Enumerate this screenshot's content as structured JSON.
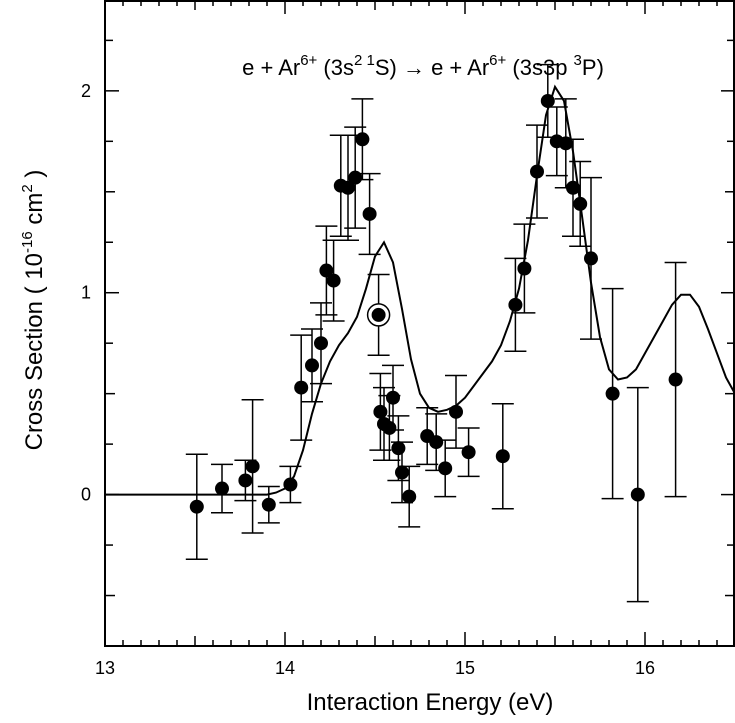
{
  "chart_data": {
    "type": "scatter",
    "title": "e + Ar6+ (3s2 1S) → e + Ar6+ (3s3p 3P)",
    "title_parts": {
      "pre": "e + Ar",
      "sup1": "6+",
      "mid1": " (3s",
      "sup2": "2 1",
      "mid2": "S) → e + Ar",
      "sup3": "6+",
      "mid3": " (3s3p ",
      "sup4": "3",
      "post": "P)"
    },
    "xlabel": "Interaction Energy (eV)",
    "ylabel_parts": {
      "pre": "Cross Section ( 10",
      "sup1": "-16",
      "mid": " cm",
      "sup2": "2",
      "post": " )"
    },
    "xlim": [
      13,
      16.5
    ],
    "ylim": [
      -0.75,
      2.45
    ],
    "x_ticks": [
      13,
      14,
      15,
      16
    ],
    "y_ticks": [
      0,
      1,
      2
    ],
    "x_tick_labels": [
      "13",
      "14",
      "15",
      "16"
    ],
    "y_tick_labels": [
      "0",
      "1",
      "2"
    ],
    "grid": false,
    "series": [
      {
        "kind": "points",
        "points": [
          {
            "x": 13.51,
            "y": -0.06,
            "err": 0.26
          },
          {
            "x": 13.65,
            "y": 0.03,
            "err": 0.12
          },
          {
            "x": 13.78,
            "y": 0.07,
            "err": 0.1
          },
          {
            "x": 13.82,
            "y": 0.14,
            "err": 0.33
          },
          {
            "x": 13.91,
            "y": -0.05,
            "err": 0.09
          },
          {
            "x": 14.03,
            "y": 0.05,
            "err": 0.09
          },
          {
            "x": 14.09,
            "y": 0.53,
            "err": 0.26
          },
          {
            "x": 14.15,
            "y": 0.64,
            "err": 0.18
          },
          {
            "x": 14.2,
            "y": 0.75,
            "err": 0.2
          },
          {
            "x": 14.23,
            "y": 1.11,
            "err": 0.22
          },
          {
            "x": 14.27,
            "y": 1.06,
            "err": 0.2
          },
          {
            "x": 14.31,
            "y": 1.53,
            "err": 0.25
          },
          {
            "x": 14.35,
            "y": 1.52,
            "err": 0.26
          },
          {
            "x": 14.39,
            "y": 1.57,
            "err": 0.25
          },
          {
            "x": 14.43,
            "y": 1.76,
            "err": 0.2
          },
          {
            "x": 14.47,
            "y": 1.39,
            "err": 0.2
          },
          {
            "x": 14.52,
            "y": 0.89,
            "err": 0.2,
            "circled": true
          },
          {
            "x": 14.53,
            "y": 0.41,
            "err": 0.19
          },
          {
            "x": 14.55,
            "y": 0.35,
            "err": 0.18
          },
          {
            "x": 14.58,
            "y": 0.33,
            "err": 0.16
          },
          {
            "x": 14.6,
            "y": 0.48,
            "err": 0.16
          },
          {
            "x": 14.63,
            "y": 0.23,
            "err": 0.16
          },
          {
            "x": 14.65,
            "y": 0.11,
            "err": 0.15
          },
          {
            "x": 14.69,
            "y": -0.01,
            "err": 0.15
          },
          {
            "x": 14.79,
            "y": 0.29,
            "err": 0.14
          },
          {
            "x": 14.84,
            "y": 0.26,
            "err": 0.14
          },
          {
            "x": 14.89,
            "y": 0.13,
            "err": 0.14
          },
          {
            "x": 14.95,
            "y": 0.41,
            "err": 0.18
          },
          {
            "x": 15.02,
            "y": 0.21,
            "err": 0.12
          },
          {
            "x": 15.21,
            "y": 0.19,
            "err": 0.26
          },
          {
            "x": 15.28,
            "y": 0.94,
            "err": 0.23
          },
          {
            "x": 15.33,
            "y": 1.12,
            "err": 0.22
          },
          {
            "x": 15.4,
            "y": 1.6,
            "err": 0.23
          },
          {
            "x": 15.46,
            "y": 1.95,
            "err": 0.18
          },
          {
            "x": 15.51,
            "y": 1.75,
            "err": 0.17
          },
          {
            "x": 15.56,
            "y": 1.74,
            "err": 0.22
          },
          {
            "x": 15.6,
            "y": 1.52,
            "err": 0.24
          },
          {
            "x": 15.64,
            "y": 1.44,
            "err": 0.21
          },
          {
            "x": 15.7,
            "y": 1.17,
            "err": 0.4
          },
          {
            "x": 15.82,
            "y": 0.5,
            "err": 0.52
          },
          {
            "x": 15.96,
            "y": 0.0,
            "err": 0.53
          },
          {
            "x": 16.17,
            "y": 0.57,
            "err": 0.58
          }
        ]
      },
      {
        "kind": "curve",
        "points": [
          {
            "x": 13.0,
            "y": 0.0
          },
          {
            "x": 13.5,
            "y": 0.0
          },
          {
            "x": 13.9,
            "y": 0.0
          },
          {
            "x": 13.95,
            "y": 0.01
          },
          {
            "x": 14.0,
            "y": 0.03
          },
          {
            "x": 14.05,
            "y": 0.09
          },
          {
            "x": 14.1,
            "y": 0.22
          },
          {
            "x": 14.15,
            "y": 0.4
          },
          {
            "x": 14.2,
            "y": 0.55
          },
          {
            "x": 14.25,
            "y": 0.66
          },
          {
            "x": 14.3,
            "y": 0.74
          },
          {
            "x": 14.35,
            "y": 0.8
          },
          {
            "x": 14.4,
            "y": 0.88
          },
          {
            "x": 14.45,
            "y": 1.02
          },
          {
            "x": 14.5,
            "y": 1.18
          },
          {
            "x": 14.55,
            "y": 1.25
          },
          {
            "x": 14.6,
            "y": 1.15
          },
          {
            "x": 14.65,
            "y": 0.92
          },
          {
            "x": 14.7,
            "y": 0.67
          },
          {
            "x": 14.75,
            "y": 0.5
          },
          {
            "x": 14.8,
            "y": 0.43
          },
          {
            "x": 14.85,
            "y": 0.41
          },
          {
            "x": 14.9,
            "y": 0.42
          },
          {
            "x": 14.95,
            "y": 0.44
          },
          {
            "x": 15.0,
            "y": 0.48
          },
          {
            "x": 15.05,
            "y": 0.54
          },
          {
            "x": 15.1,
            "y": 0.6
          },
          {
            "x": 15.15,
            "y": 0.66
          },
          {
            "x": 15.2,
            "y": 0.74
          },
          {
            "x": 15.25,
            "y": 0.86
          },
          {
            "x": 15.3,
            "y": 1.02
          },
          {
            "x": 15.35,
            "y": 1.26
          },
          {
            "x": 15.4,
            "y": 1.58
          },
          {
            "x": 15.45,
            "y": 1.88
          },
          {
            "x": 15.5,
            "y": 2.02
          },
          {
            "x": 15.55,
            "y": 1.95
          },
          {
            "x": 15.6,
            "y": 1.7
          },
          {
            "x": 15.65,
            "y": 1.38
          },
          {
            "x": 15.7,
            "y": 1.05
          },
          {
            "x": 15.75,
            "y": 0.78
          },
          {
            "x": 15.8,
            "y": 0.62
          },
          {
            "x": 15.85,
            "y": 0.57
          },
          {
            "x": 15.9,
            "y": 0.58
          },
          {
            "x": 15.95,
            "y": 0.62
          },
          {
            "x": 16.0,
            "y": 0.7
          },
          {
            "x": 16.05,
            "y": 0.78
          },
          {
            "x": 16.1,
            "y": 0.86
          },
          {
            "x": 16.15,
            "y": 0.94
          },
          {
            "x": 16.2,
            "y": 0.99
          },
          {
            "x": 16.25,
            "y": 0.99
          },
          {
            "x": 16.3,
            "y": 0.93
          },
          {
            "x": 16.35,
            "y": 0.82
          },
          {
            "x": 16.4,
            "y": 0.7
          },
          {
            "x": 16.45,
            "y": 0.58
          },
          {
            "x": 16.5,
            "y": 0.5
          }
        ]
      }
    ]
  }
}
